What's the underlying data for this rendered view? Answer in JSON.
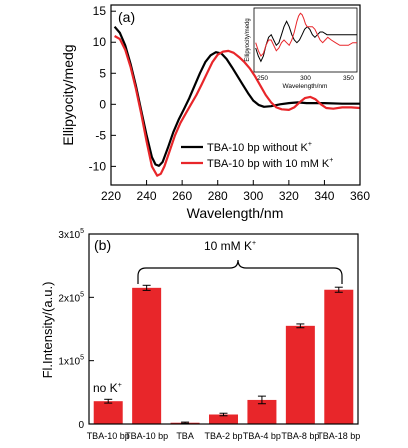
{
  "chart_data": [
    {
      "type": "line",
      "panel_label": "(a)",
      "xlabel": "Wavelength/nm",
      "ylabel": "Ellipyocity/medg",
      "xlim": [
        220,
        360
      ],
      "ylim": [
        -13,
        16
      ],
      "x_ticks": [
        220,
        240,
        260,
        280,
        300,
        320,
        340,
        360
      ],
      "y_ticks": [
        -10,
        -5,
        0,
        5,
        10,
        15
      ],
      "legend_position": "bottom-right",
      "series": [
        {
          "name": "TBA-10 bp without K",
          "name_sup": "+",
          "color": "#000000",
          "points": [
            [
              222,
              12.5
            ],
            [
              225,
              11.5
            ],
            [
              228,
              9.5
            ],
            [
              231,
              6.5
            ],
            [
              234,
              3
            ],
            [
              237,
              -1
            ],
            [
              240,
              -5
            ],
            [
              243,
              -8.5
            ],
            [
              245,
              -9.7
            ],
            [
              247,
              -9.9
            ],
            [
              249,
              -9.3
            ],
            [
              252,
              -7
            ],
            [
              255,
              -4.5
            ],
            [
              258,
              -2.5
            ],
            [
              261,
              -0.8
            ],
            [
              264,
              1
            ],
            [
              267,
              3
            ],
            [
              270,
              5
            ],
            [
              273,
              6.8
            ],
            [
              276,
              7.9
            ],
            [
              279,
              8.4
            ],
            [
              282,
              8.2
            ],
            [
              285,
              7.3
            ],
            [
              288,
              6
            ],
            [
              291,
              4.6
            ],
            [
              294,
              3.2
            ],
            [
              297,
              1.8
            ],
            [
              300,
              0.6
            ],
            [
              303,
              -0.1
            ],
            [
              306,
              -0.4
            ],
            [
              310,
              -0.3
            ],
            [
              315,
              0
            ],
            [
              320,
              0.2
            ],
            [
              325,
              0.3
            ],
            [
              330,
              0.2
            ],
            [
              340,
              0.2
            ],
            [
              350,
              0.1
            ],
            [
              360,
              0.1
            ]
          ]
        },
        {
          "name": "TBA-10 bp with 10 mM K",
          "name_sup": "+",
          "color": "#e8262a",
          "points": [
            [
              222,
              11
            ],
            [
              225,
              10.5
            ],
            [
              228,
              8.8
            ],
            [
              231,
              6
            ],
            [
              234,
              2.5
            ],
            [
              237,
              -1.5
            ],
            [
              240,
              -6
            ],
            [
              243,
              -10
            ],
            [
              246,
              -11.5
            ],
            [
              248,
              -11.2
            ],
            [
              250,
              -10
            ],
            [
              253,
              -7.5
            ],
            [
              256,
              -5
            ],
            [
              259,
              -3
            ],
            [
              262,
              -1.5
            ],
            [
              265,
              0
            ],
            [
              268,
              1.5
            ],
            [
              271,
              3.2
            ],
            [
              274,
              5
            ],
            [
              277,
              6.8
            ],
            [
              280,
              8
            ],
            [
              283,
              8.5
            ],
            [
              286,
              8.6
            ],
            [
              289,
              8.3
            ],
            [
              292,
              7.6
            ],
            [
              295,
              6.8
            ],
            [
              298,
              5.8
            ],
            [
              301,
              4.5
            ],
            [
              304,
              3
            ],
            [
              307,
              1.5
            ],
            [
              310,
              0.3
            ],
            [
              313,
              -0.5
            ],
            [
              316,
              -0.8
            ],
            [
              320,
              -0.9
            ],
            [
              323,
              -0.5
            ],
            [
              326,
              0.3
            ],
            [
              329,
              1
            ],
            [
              332,
              1.2
            ],
            [
              335,
              0.8
            ],
            [
              338,
              0
            ],
            [
              341,
              -0.6
            ],
            [
              345,
              -0.7
            ],
            [
              350,
              -0.5
            ],
            [
              355,
              -0.5
            ],
            [
              360,
              -0.6
            ]
          ]
        }
      ],
      "inset": {
        "ylabel": "Ellipyocity/medg",
        "xlabel": "Wavelength/nm",
        "xlim": [
          240,
          360
        ],
        "x_ticks": [
          250,
          300,
          350
        ],
        "ylim": [
          -12,
          12
        ],
        "series": [
          {
            "color": "#000000",
            "points": [
              [
                242,
                -3
              ],
              [
                245,
                -6
              ],
              [
                248,
                -8
              ],
              [
                251,
                -6
              ],
              [
                254,
                -2
              ],
              [
                257,
                1
              ],
              [
                260,
                2
              ],
              [
                263,
                0
              ],
              [
                266,
                -2
              ],
              [
                269,
                -1
              ],
              [
                272,
                2
              ],
              [
                275,
                5
              ],
              [
                278,
                7
              ],
              [
                281,
                5
              ],
              [
                284,
                2
              ],
              [
                287,
                0
              ],
              [
                290,
                -1
              ],
              [
                293,
                0
              ],
              [
                296,
                2
              ],
              [
                299,
                4
              ],
              [
                302,
                5
              ],
              [
                305,
                4
              ],
              [
                308,
                2
              ],
              [
                311,
                1
              ],
              [
                314,
                2
              ],
              [
                317,
                3
              ],
              [
                320,
                3
              ],
              [
                325,
                2
              ],
              [
                330,
                2
              ],
              [
                335,
                2
              ],
              [
                340,
                2
              ],
              [
                345,
                2
              ],
              [
                350,
                2
              ],
              [
                355,
                2
              ],
              [
                360,
                2
              ]
            ]
          },
          {
            "color": "#e8262a",
            "points": [
              [
                242,
                -1
              ],
              [
                245,
                -4
              ],
              [
                248,
                -6
              ],
              [
                251,
                -5
              ],
              [
                254,
                -2
              ],
              [
                257,
                0
              ],
              [
                260,
                0
              ],
              [
                263,
                -2
              ],
              [
                266,
                -4
              ],
              [
                269,
                -3
              ],
              [
                272,
                -1
              ],
              [
                275,
                0
              ],
              [
                278,
                -1
              ],
              [
                281,
                -2
              ],
              [
                284,
                0
              ],
              [
                287,
                3
              ],
              [
                290,
                7
              ],
              [
                292,
                9
              ],
              [
                294,
                10
              ],
              [
                296,
                9.5
              ],
              [
                298,
                8
              ],
              [
                300,
                6
              ],
              [
                302,
                5
              ],
              [
                305,
                5
              ],
              [
                308,
                5
              ],
              [
                311,
                4
              ],
              [
                314,
                2
              ],
              [
                317,
                0
              ],
              [
                320,
                -1
              ],
              [
                323,
                0
              ],
              [
                326,
                1
              ],
              [
                330,
                0
              ],
              [
                335,
                -1
              ],
              [
                340,
                -2
              ],
              [
                345,
                -2
              ],
              [
                350,
                -2
              ],
              [
                355,
                -1
              ],
              [
                360,
                -1
              ]
            ]
          }
        ]
      }
    },
    {
      "type": "bar",
      "panel_label": "(b)",
      "ylabel": "Fl.Intensity/(a.u.)",
      "ylim": [
        0,
        300000
      ],
      "y_ticks": [
        {
          "value": 0,
          "base": "0",
          "exp": ""
        },
        {
          "value": 100000,
          "base": "1x10",
          "exp": "5"
        },
        {
          "value": 200000,
          "base": "2x10",
          "exp": "5"
        },
        {
          "value": 300000,
          "base": "3x10",
          "exp": "5"
        }
      ],
      "bar_color": "#e8262a",
      "categories": [
        "TBA-10 bp",
        "TBA-10 bp",
        "TBA",
        "TBA-2 bp",
        "TBA-4 bp",
        "TBA-8 bp",
        "TBA-18 bp"
      ],
      "values": [
        36000,
        215000,
        2000,
        15000,
        38000,
        155000,
        212000
      ],
      "errors": [
        3000,
        4000,
        1000,
        2000,
        6000,
        3000,
        4000
      ],
      "annotations": {
        "no_k_text": "no K",
        "no_k_sup": "+",
        "bracket_text": "10 mM K",
        "bracket_sup": "+"
      }
    }
  ]
}
